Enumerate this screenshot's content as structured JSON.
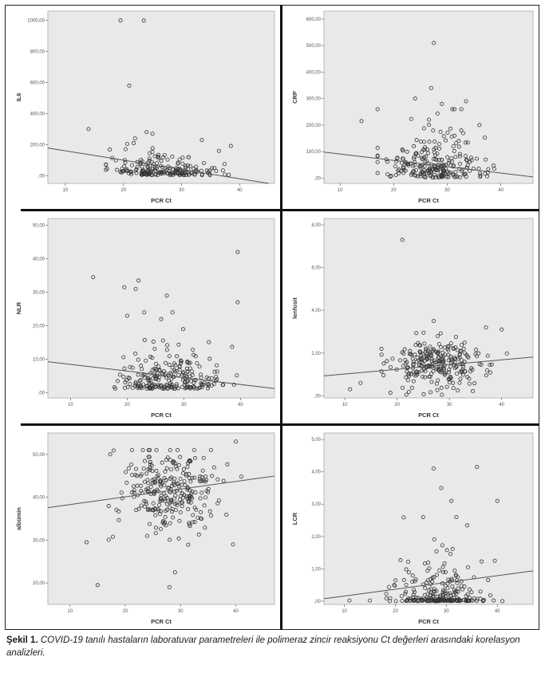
{
  "caption": {
    "label": "Şekil 1.",
    "text": "COVID-19 tanılı hastaların laboratuvar parametreleri ile polimeraz zincir reaksiyonu Ct değerleri arasındaki korelasyon analizleri."
  },
  "chart_data": [
    {
      "type": "scatter",
      "ylabel": "IL6",
      "xlabel": "PCR Ct",
      "xlim": [
        7,
        46
      ],
      "ylim": [
        -50,
        1060
      ],
      "xticks": [
        10,
        20,
        30,
        40
      ],
      "yticks": [
        0,
        200,
        400,
        600,
        800,
        1000
      ],
      "ytick_labels": [
        ",00",
        "200,00",
        "400,00",
        "600,00",
        "800,00",
        "1000,00"
      ],
      "fit": {
        "intercept": 220,
        "slope": -6
      },
      "highlight_points": [
        [
          19.5,
          1000
        ],
        [
          23.5,
          1000
        ],
        [
          21,
          580
        ],
        [
          14,
          300
        ],
        [
          24,
          280
        ],
        [
          25,
          270
        ],
        [
          33.5,
          230
        ],
        [
          22,
          240
        ]
      ],
      "point_gen": {
        "seed": 11,
        "n": 200,
        "x_mean": 27.5,
        "x_sd": 4.6,
        "x_min": 17,
        "x_max": 41,
        "y_base": 3,
        "y_scale": 38,
        "y_max": 230,
        "y_min": 0
      }
    },
    {
      "type": "scatter",
      "ylabel": "CRP",
      "xlabel": "PCR Ct",
      "xlim": [
        7,
        46
      ],
      "ylim": [
        -20,
        630
      ],
      "xticks": [
        10,
        20,
        30,
        40
      ],
      "yticks": [
        0,
        100,
        200,
        300,
        400,
        500,
        600
      ],
      "ytick_labels": [
        ",00",
        "100,00",
        "200,00",
        "300,00",
        "400,00",
        "500,00",
        "600,00"
      ],
      "fit": {
        "intercept": 115,
        "slope": -2.4
      },
      "highlight_points": [
        [
          27.5,
          510
        ],
        [
          27,
          340
        ],
        [
          14,
          215
        ],
        [
          33.5,
          290
        ],
        [
          24,
          300
        ],
        [
          29,
          280
        ],
        [
          36,
          200
        ]
      ],
      "point_gen": {
        "seed": 23,
        "n": 240,
        "x_mean": 27.5,
        "x_sd": 4.6,
        "x_min": 17,
        "x_max": 41,
        "y_base": 2,
        "y_scale": 62,
        "y_max": 260,
        "y_min": 0
      }
    },
    {
      "type": "scatter",
      "ylabel": "NLR",
      "xlabel": "PCR Ct",
      "xlim": [
        6,
        46
      ],
      "ylim": [
        -1.5,
        52
      ],
      "xticks": [
        10,
        20,
        30,
        40
      ],
      "yticks": [
        0,
        10,
        20,
        30,
        40,
        50
      ],
      "ytick_labels": [
        ",00",
        "10,00",
        "20,00",
        "30,00",
        "40,00",
        "50,00"
      ],
      "fit": {
        "intercept": 10.5,
        "slope": -0.2
      },
      "highlight_points": [
        [
          14,
          34.5
        ],
        [
          19.5,
          31.5
        ],
        [
          21.5,
          31
        ],
        [
          22,
          33.5
        ],
        [
          39.5,
          42
        ],
        [
          39.5,
          27
        ],
        [
          27,
          29
        ],
        [
          28,
          24
        ],
        [
          26,
          22
        ],
        [
          23,
          24
        ],
        [
          20,
          23
        ]
      ],
      "point_gen": {
        "seed": 37,
        "n": 230,
        "x_mean": 27.5,
        "x_sd": 4.6,
        "x_min": 17,
        "x_max": 41,
        "y_base": 1.2,
        "y_scale": 3.6,
        "y_max": 19,
        "y_min": 0.5
      }
    },
    {
      "type": "scatter",
      "ylabel": "lenfosit",
      "xlabel": "PCR Ct",
      "xlim": [
        6,
        46
      ],
      "ylim": [
        -0.1,
        8.3
      ],
      "xticks": [
        10,
        20,
        30,
        40
      ],
      "yticks": [
        0,
        2,
        4,
        6,
        8
      ],
      "ytick_labels": [
        ",00",
        "2,00",
        "4,00",
        "6,00",
        "8,00"
      ],
      "fit": {
        "intercept": 0.8,
        "slope": 0.022
      },
      "highlight_points": [
        [
          21,
          7.3
        ],
        [
          27,
          3.5
        ],
        [
          37,
          3.2
        ],
        [
          40,
          3.1
        ],
        [
          11,
          0.3
        ],
        [
          13,
          0.6
        ]
      ],
      "point_gen": {
        "seed": 53,
        "n": 260,
        "x_mean": 28,
        "x_sd": 4.8,
        "x_min": 17,
        "x_max": 41,
        "y_mean": 1.45,
        "y_sd": 0.6,
        "y_min": 0.05,
        "y_max": 3.2,
        "mode": "normal"
      }
    },
    {
      "type": "scatter",
      "ylabel": "albümin",
      "xlabel": "PCR Ct",
      "xlim": [
        6,
        47
      ],
      "ylim": [
        15,
        55
      ],
      "xticks": [
        10,
        20,
        30,
        40
      ],
      "yticks": [
        20,
        30,
        40,
        50
      ],
      "ytick_labels": [
        "20,00",
        "30,00",
        "40,00",
        "50,00"
      ],
      "fit": {
        "intercept": 36.5,
        "slope": 0.18
      },
      "highlight_points": [
        [
          15,
          19.5
        ],
        [
          13,
          29.5
        ],
        [
          29,
          22.5
        ],
        [
          28,
          19
        ],
        [
          40,
          53
        ],
        [
          39.5,
          29
        ]
      ],
      "point_gen": {
        "seed": 71,
        "n": 280,
        "x_mean": 28,
        "x_sd": 4.8,
        "x_min": 17,
        "x_max": 41,
        "y_mean": 41.5,
        "y_sd": 5.2,
        "y_min": 22,
        "y_max": 51,
        "mode": "normal"
      }
    },
    {
      "type": "scatter",
      "ylabel": "LCR",
      "xlabel": "PCR Ct",
      "xlim": [
        6,
        47
      ],
      "ylim": [
        -0.1,
        5.2
      ],
      "xticks": [
        10,
        20,
        30,
        40
      ],
      "yticks": [
        0,
        1,
        2,
        3,
        4,
        5
      ],
      "ytick_labels": [
        ",00",
        "1,00",
        "2,00",
        "3,00",
        "4,00",
        "5,00"
      ],
      "fit": {
        "intercept": -0.05,
        "slope": 0.021
      },
      "highlight_points": [
        [
          27.5,
          4.1
        ],
        [
          36,
          4.15
        ],
        [
          29,
          3.5
        ],
        [
          31,
          3.1
        ],
        [
          40,
          3.1
        ],
        [
          39.5,
          1.25
        ],
        [
          11,
          0.02
        ],
        [
          15,
          0.02
        ]
      ],
      "point_gen": {
        "seed": 97,
        "n": 250,
        "x_mean": 28,
        "x_sd": 4.6,
        "x_min": 17,
        "x_max": 41,
        "y_base": 0.0,
        "y_scale": 0.55,
        "y_max": 2.6,
        "y_min": 0,
        "zero_frac": 0.45
      }
    }
  ]
}
